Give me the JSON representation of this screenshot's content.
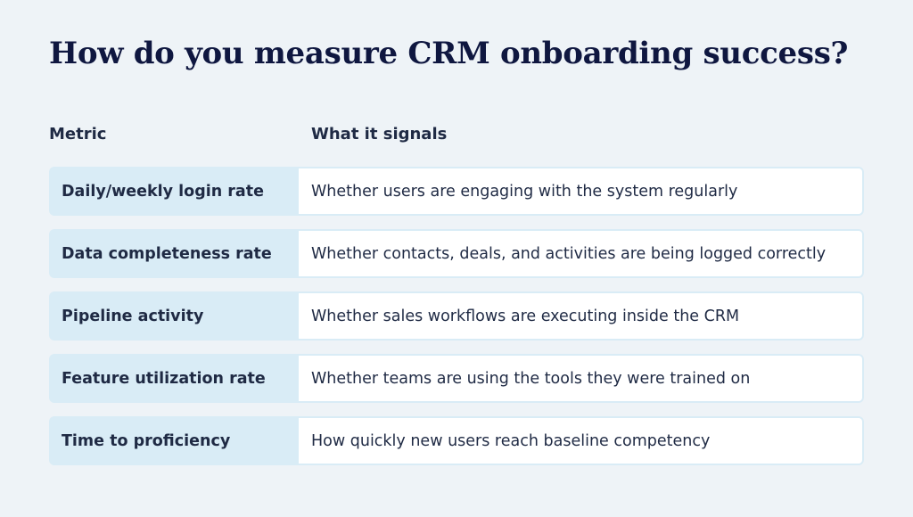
{
  "title": "How do you measure CRM onboarding success?",
  "table": {
    "headers": {
      "metric": "Metric",
      "signal": "What it signals"
    },
    "rows": [
      {
        "metric": "Daily/weekly login rate",
        "signal": "Whether users are engaging with the system regularly"
      },
      {
        "metric": "Data completeness rate",
        "signal": "Whether contacts, deals, and activities are being logged correctly"
      },
      {
        "metric": "Pipeline activity",
        "signal": "Whether sales workflows are executing inside the CRM"
      },
      {
        "metric": "Feature utilization rate",
        "signal": "Whether teams are using the tools they were trained on"
      },
      {
        "metric": "Time to proficiency",
        "signal": "How quickly new users reach baseline competency"
      }
    ]
  },
  "colors": {
    "background": "#eef3f7",
    "title": "#0f1740",
    "metric_cell": "#d9ecf6",
    "signal_cell": "#ffffff",
    "text": "#1f2a44"
  }
}
